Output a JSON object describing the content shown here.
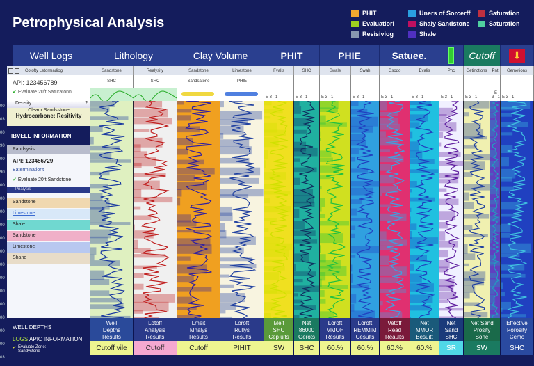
{
  "title": "Petrophysical Analysis",
  "legend": [
    {
      "label": "PHIT",
      "color": "#f0a830"
    },
    {
      "label": "Uners of Sorcerff",
      "color": "#2aa0e0"
    },
    {
      "label": "Saturation",
      "color": "#c03040"
    },
    {
      "label": "Evaluatiori",
      "color": "#a0d020"
    },
    {
      "label": "Shaly Sandstone",
      "color": "#c01060"
    },
    {
      "label": "Saturation",
      "color": "#50d0a0"
    },
    {
      "label": "Resisiviog",
      "color": "#8898b0"
    },
    {
      "label": "Shale",
      "color": "#5030c0"
    }
  ],
  "headers": [
    "Well Logs",
    "Lithology",
    "Clay Volume",
    "PHIT",
    "PHIE",
    "Satuee.",
    "",
    "Cutoff",
    ""
  ],
  "subheaders": [
    "Sandstone",
    "Realysity",
    "Sandstone",
    "Limestone",
    "Fvalis",
    "SHC",
    "Swale",
    "Swah",
    "Gsodo",
    "Evalis",
    "Pnc",
    "Getinctions",
    "Pnt",
    "Gemetions"
  ],
  "row2": [
    "SHC",
    "SHC",
    "Sandsatone",
    "PHIE"
  ],
  "left": {
    "toolbar_label": "Cotofty Letormadiog",
    "api": "API: 123456789",
    "evaluate": "Evaluate 20ft Saturatonn",
    "density": "Density",
    "clean": "Cleanr Sandsstone",
    "hydro": "Hydrocarbone: Resitivity",
    "well_info": "IBVELL INFORMATION",
    "pandsysis": "Pandsysis",
    "api2": "API: 123456729",
    "determ": "Baterminatiorit",
    "evaluate2": "Evaluate 20ft Sandstone",
    "analysis": "Pnalysis",
    "lith": [
      {
        "label": "Sandstone",
        "color": "#f0d8b0"
      },
      {
        "label": "Limestone",
        "color": "#d8e8f8"
      },
      {
        "label": "Shale",
        "color": "#70d8d0"
      },
      {
        "label": "Sandstone",
        "color": "#f0b0c8"
      },
      {
        "label": "Limestone",
        "color": "#b8c8f0"
      },
      {
        "label": "Shane",
        "color": "#e8dcc8"
      }
    ]
  },
  "depths": [
    "00",
    "03",
    "00",
    "90",
    "00",
    "90",
    "00",
    "00",
    "00",
    "00",
    "00",
    "00",
    "00",
    "00",
    "00",
    "00",
    "00",
    "00",
    "00",
    "03"
  ],
  "bottom_left": {
    "well_depths": "WELL DEPTHS",
    "logs": "LOGS",
    "api_info": "APIC INFORMATION",
    "evaluate": "Evaluate Zone: Sandystone"
  },
  "bottom": [
    {
      "l1": "Well",
      "l2": "Depths",
      "l3": "Results",
      "bg": "#2a4a9a",
      "val": "Cutoff vile",
      "vbg": "#eef590"
    },
    {
      "l1": "Lotoff",
      "l2": "Analysis",
      "l3": "Results",
      "bg": "#2a3a8a",
      "val": "Cutoff",
      "vbg": "#f5a8d0"
    },
    {
      "l1": "Lmeit",
      "l2": "Mnalys",
      "l3": "Results",
      "bg": "#2a3a8a",
      "val": "Cutoff",
      "vbg": "#eef590"
    },
    {
      "l1": "Loroft",
      "l2": "Rullys",
      "l3": "Results",
      "bg": "#2a3a8a",
      "val": "PIHIT",
      "vbg": "#eef590"
    },
    {
      "l1": "Meit",
      "l2": "SHC",
      "l3": "Cep ults",
      "bg": "#5a9a3a",
      "val": "SW",
      "vbg": "#eef590"
    },
    {
      "l1": "Net",
      "l2": "86000",
      "l3": "Gerots",
      "bg": "#1a7a60",
      "val": "SHC",
      "vbg": "#eef590"
    },
    {
      "l1": "Loroft",
      "l2": "MMOH",
      "l3": "Results",
      "bg": "#2a3a8a",
      "val": "60.%",
      "vbg": "#eef590"
    },
    {
      "l1": "Loroft",
      "l2": "REMMIM",
      "l3": "Cesults",
      "bg": "#2a3a8a",
      "val": "60.%",
      "vbg": "#eef590"
    },
    {
      "l1": "Vetoff",
      "l2": "Read",
      "l3": "Reaults",
      "bg": "#7a1a3a",
      "val": "60.%",
      "vbg": "#eef590"
    },
    {
      "l1": "Net",
      "l2": "MMOR",
      "l3": "Besuitt",
      "bg": "#1a5a7a",
      "val": "60.%",
      "vbg": "#eef590"
    },
    {
      "l1": "Net",
      "l2": "Sand",
      "l3": "SHC",
      "bg": "#1a3a7a",
      "val": "SR",
      "vbg": "#50d8e8"
    },
    {
      "l1": "Net Sand",
      "l2": "Prosity",
      "l3": "Sone",
      "bg": "#1a6a4a",
      "val": "SW",
      "vbg": "#1a7a60"
    },
    {
      "l1": "Effective",
      "l2": "Porosity",
      "l3": "Cemo",
      "bg": "#2a4aa0",
      "val": "SHC",
      "vbg": "#2a4aa0"
    }
  ]
}
